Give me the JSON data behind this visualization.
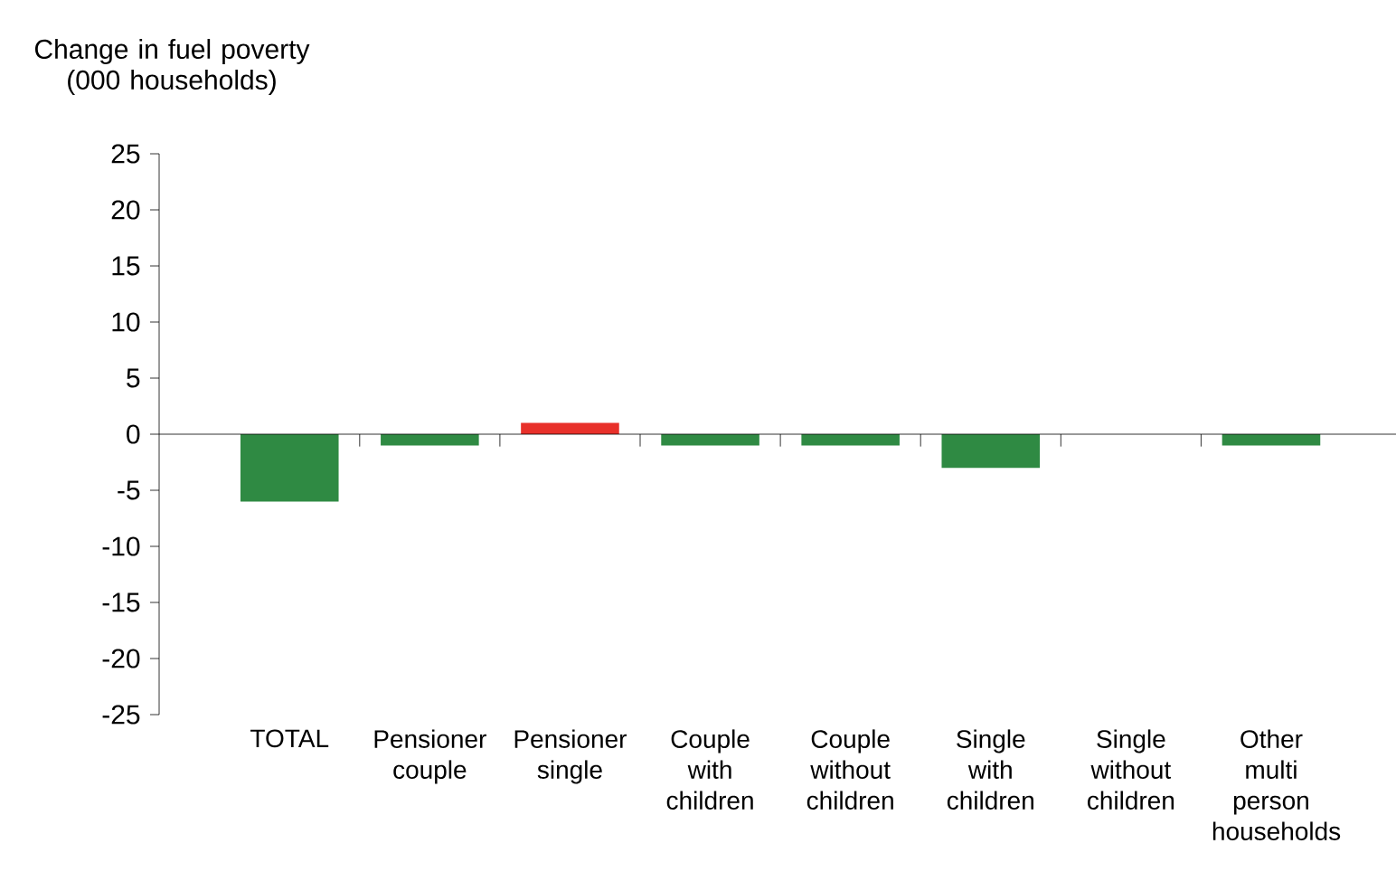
{
  "chart_data": {
    "type": "bar",
    "ylabel": "Change in fuel poverty (000 households)",
    "categories": [
      "TOTAL",
      "Pensioner couple",
      "Pensioner single",
      "Couple with children",
      "Couple without children",
      "Single with children",
      "Single without children",
      "Other multi person households"
    ],
    "values": [
      -6,
      -1,
      1,
      -1,
      -1,
      -3,
      0,
      -1
    ],
    "colors": [
      "#2f8a43",
      "#2f8a43",
      "#e8302a",
      "#2f8a43",
      "#2f8a43",
      "#2f8a43",
      "#2f8a43",
      "#2f8a43"
    ],
    "ylim": [
      -25,
      25
    ],
    "yticks": [
      -25,
      -20,
      -15,
      -10,
      -5,
      0,
      5,
      10,
      15,
      20,
      25
    ]
  }
}
